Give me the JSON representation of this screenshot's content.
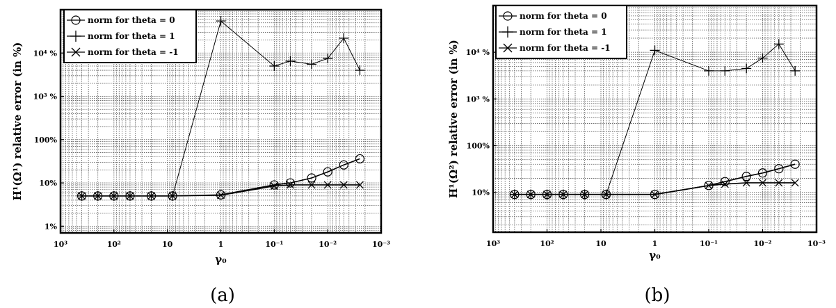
{
  "chart_data": [
    {
      "type": "line",
      "caption": "(a)",
      "ylabel": "H¹(Ω¹) relative error (in %)",
      "xlabel": "γ₀",
      "x_scale": "log",
      "y_scale": "log",
      "x_reversed": true,
      "xlim": [
        1000,
        0.001
      ],
      "ylim": [
        0.7,
        100000
      ],
      "grid": true,
      "legend_position": "top-left",
      "x_tick_labels": [
        "10³",
        "10²",
        "10",
        "1",
        "10⁻¹",
        "10⁻²",
        "10⁻³"
      ],
      "x_tick_values": [
        1000,
        100,
        10,
        1,
        0.1,
        0.01,
        0.001
      ],
      "y_tick_labels": [
        "1%",
        "10%",
        "100%",
        "10³ %",
        "10⁴ %"
      ],
      "y_tick_values": [
        1,
        10,
        100,
        1000,
        10000
      ],
      "x": [
        400,
        200,
        100,
        50,
        20,
        8,
        1,
        0.1,
        0.05,
        0.02,
        0.01,
        0.005,
        0.0025
      ],
      "series": [
        {
          "name": "norm for theta = 0",
          "marker": "circle",
          "values": [
            5,
            5,
            5,
            5,
            5,
            5,
            5.3,
            9,
            10,
            13,
            18,
            26,
            36
          ]
        },
        {
          "name": "norm for theta = 1",
          "marker": "plus",
          "values": [
            5,
            5,
            5,
            5,
            5,
            5,
            55000,
            5000,
            6500,
            5500,
            7500,
            22000,
            4000
          ]
        },
        {
          "name": "norm for theta = -1",
          "marker": "x",
          "values": [
            5,
            5,
            5,
            5,
            5,
            5,
            5.2,
            8.5,
            9,
            9,
            9,
            9,
            9
          ]
        }
      ]
    },
    {
      "type": "line",
      "caption": "(b)",
      "ylabel": "H¹(Ω²) relative error (in %)",
      "xlabel": "γ₀",
      "x_scale": "log",
      "y_scale": "log",
      "x_reversed": true,
      "xlim": [
        1000,
        0.001
      ],
      "ylim": [
        1.4,
        100000
      ],
      "grid": true,
      "legend_position": "top-left",
      "x_tick_labels": [
        "10³",
        "10²",
        "10",
        "1",
        "10⁻¹",
        "10⁻²",
        "10⁻³"
      ],
      "x_tick_values": [
        1000,
        100,
        10,
        1,
        0.1,
        0.01,
        0.001
      ],
      "y_tick_labels": [
        "10%",
        "100%",
        "10³ %",
        "10⁴ %"
      ],
      "y_tick_values": [
        10,
        100,
        1000,
        10000
      ],
      "x": [
        400,
        200,
        100,
        50,
        20,
        8,
        1,
        0.1,
        0.05,
        0.02,
        0.01,
        0.005,
        0.0025
      ],
      "series": [
        {
          "name": "norm for theta = 0",
          "marker": "circle",
          "values": [
            9,
            9,
            9,
            9,
            9,
            9,
            9,
            14,
            17,
            22,
            26,
            32,
            40
          ]
        },
        {
          "name": "norm for theta = 1",
          "marker": "plus",
          "values": [
            9,
            9,
            9,
            9,
            9,
            9,
            11000,
            4000,
            4000,
            4500,
            7500,
            15000,
            4000
          ]
        },
        {
          "name": "norm for theta = -1",
          "marker": "x",
          "values": [
            9,
            9,
            9,
            9,
            9,
            9,
            9,
            14,
            15,
            16,
            16,
            16,
            16
          ]
        }
      ]
    }
  ]
}
